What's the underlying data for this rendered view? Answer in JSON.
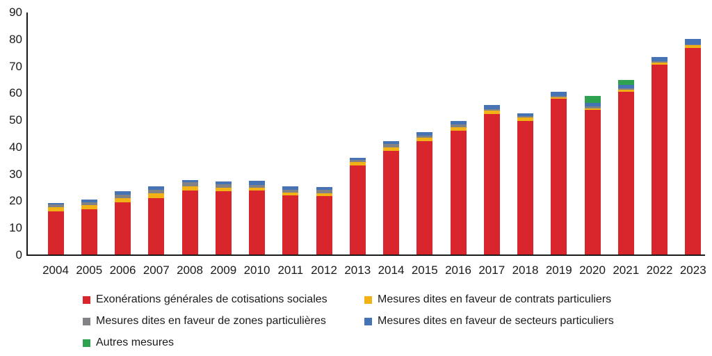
{
  "chart_data": {
    "type": "bar",
    "stacked": true,
    "title": "",
    "xlabel": "",
    "ylabel": "",
    "grid": false,
    "legend_position": "bottom",
    "ylim": [
      0,
      90
    ],
    "yticks": [
      0,
      10,
      20,
      30,
      40,
      50,
      60,
      70,
      80,
      90
    ],
    "categories": [
      "2004",
      "2005",
      "2006",
      "2007",
      "2008",
      "2009",
      "2010",
      "2011",
      "2012",
      "2013",
      "2014",
      "2015",
      "2016",
      "2017",
      "2018",
      "2019",
      "2020",
      "2021",
      "2022",
      "2023"
    ],
    "series": [
      {
        "name": "Exonérations générales de cotisations sociales",
        "color": "#D8262C",
        "values": [
          16.0,
          16.8,
          19.3,
          20.9,
          23.8,
          23.4,
          23.6,
          21.9,
          21.7,
          33.0,
          38.5,
          42.1,
          45.9,
          52.1,
          49.4,
          57.8,
          53.7,
          60.4,
          70.4,
          76.6
        ]
      },
      {
        "name": "Mesures dites en faveur de contrats particuliers",
        "color": "#F2B216",
        "values": [
          1.6,
          1.4,
          1.7,
          1.8,
          1.5,
          1.3,
          1.1,
          1.1,
          1.1,
          1.4,
          1.3,
          1.1,
          1.2,
          1.2,
          1.3,
          0.6,
          0.5,
          0.6,
          0.9,
          1.1
        ]
      },
      {
        "name": "Mesures dites en faveur de zones particulières",
        "color": "#808285",
        "values": [
          0.9,
          1.1,
          1.3,
          1.4,
          1.4,
          1.3,
          1.1,
          1.1,
          1.1,
          0.6,
          1.1,
          1.0,
          1.0,
          0.7,
          0.5,
          0.5,
          0.8,
          0.6,
          0.3,
          0.3
        ]
      },
      {
        "name": "Mesures dites en faveur de secteurs particuliers",
        "color": "#4573B3",
        "values": [
          0.6,
          1.1,
          1.1,
          1.1,
          1.0,
          1.1,
          1.5,
          1.1,
          1.2,
          0.8,
          1.2,
          1.3,
          1.3,
          1.4,
          1.2,
          1.4,
          1.3,
          1.3,
          1.6,
          1.9
        ]
      },
      {
        "name": "Autres mesures",
        "color": "#2FA24F",
        "values": [
          0,
          0,
          0,
          0,
          0,
          0,
          0,
          0,
          0,
          0,
          0,
          0,
          0,
          0,
          0,
          0,
          2.6,
          1.7,
          0,
          0
        ]
      }
    ],
    "axis_color": "#1a1a1a"
  }
}
